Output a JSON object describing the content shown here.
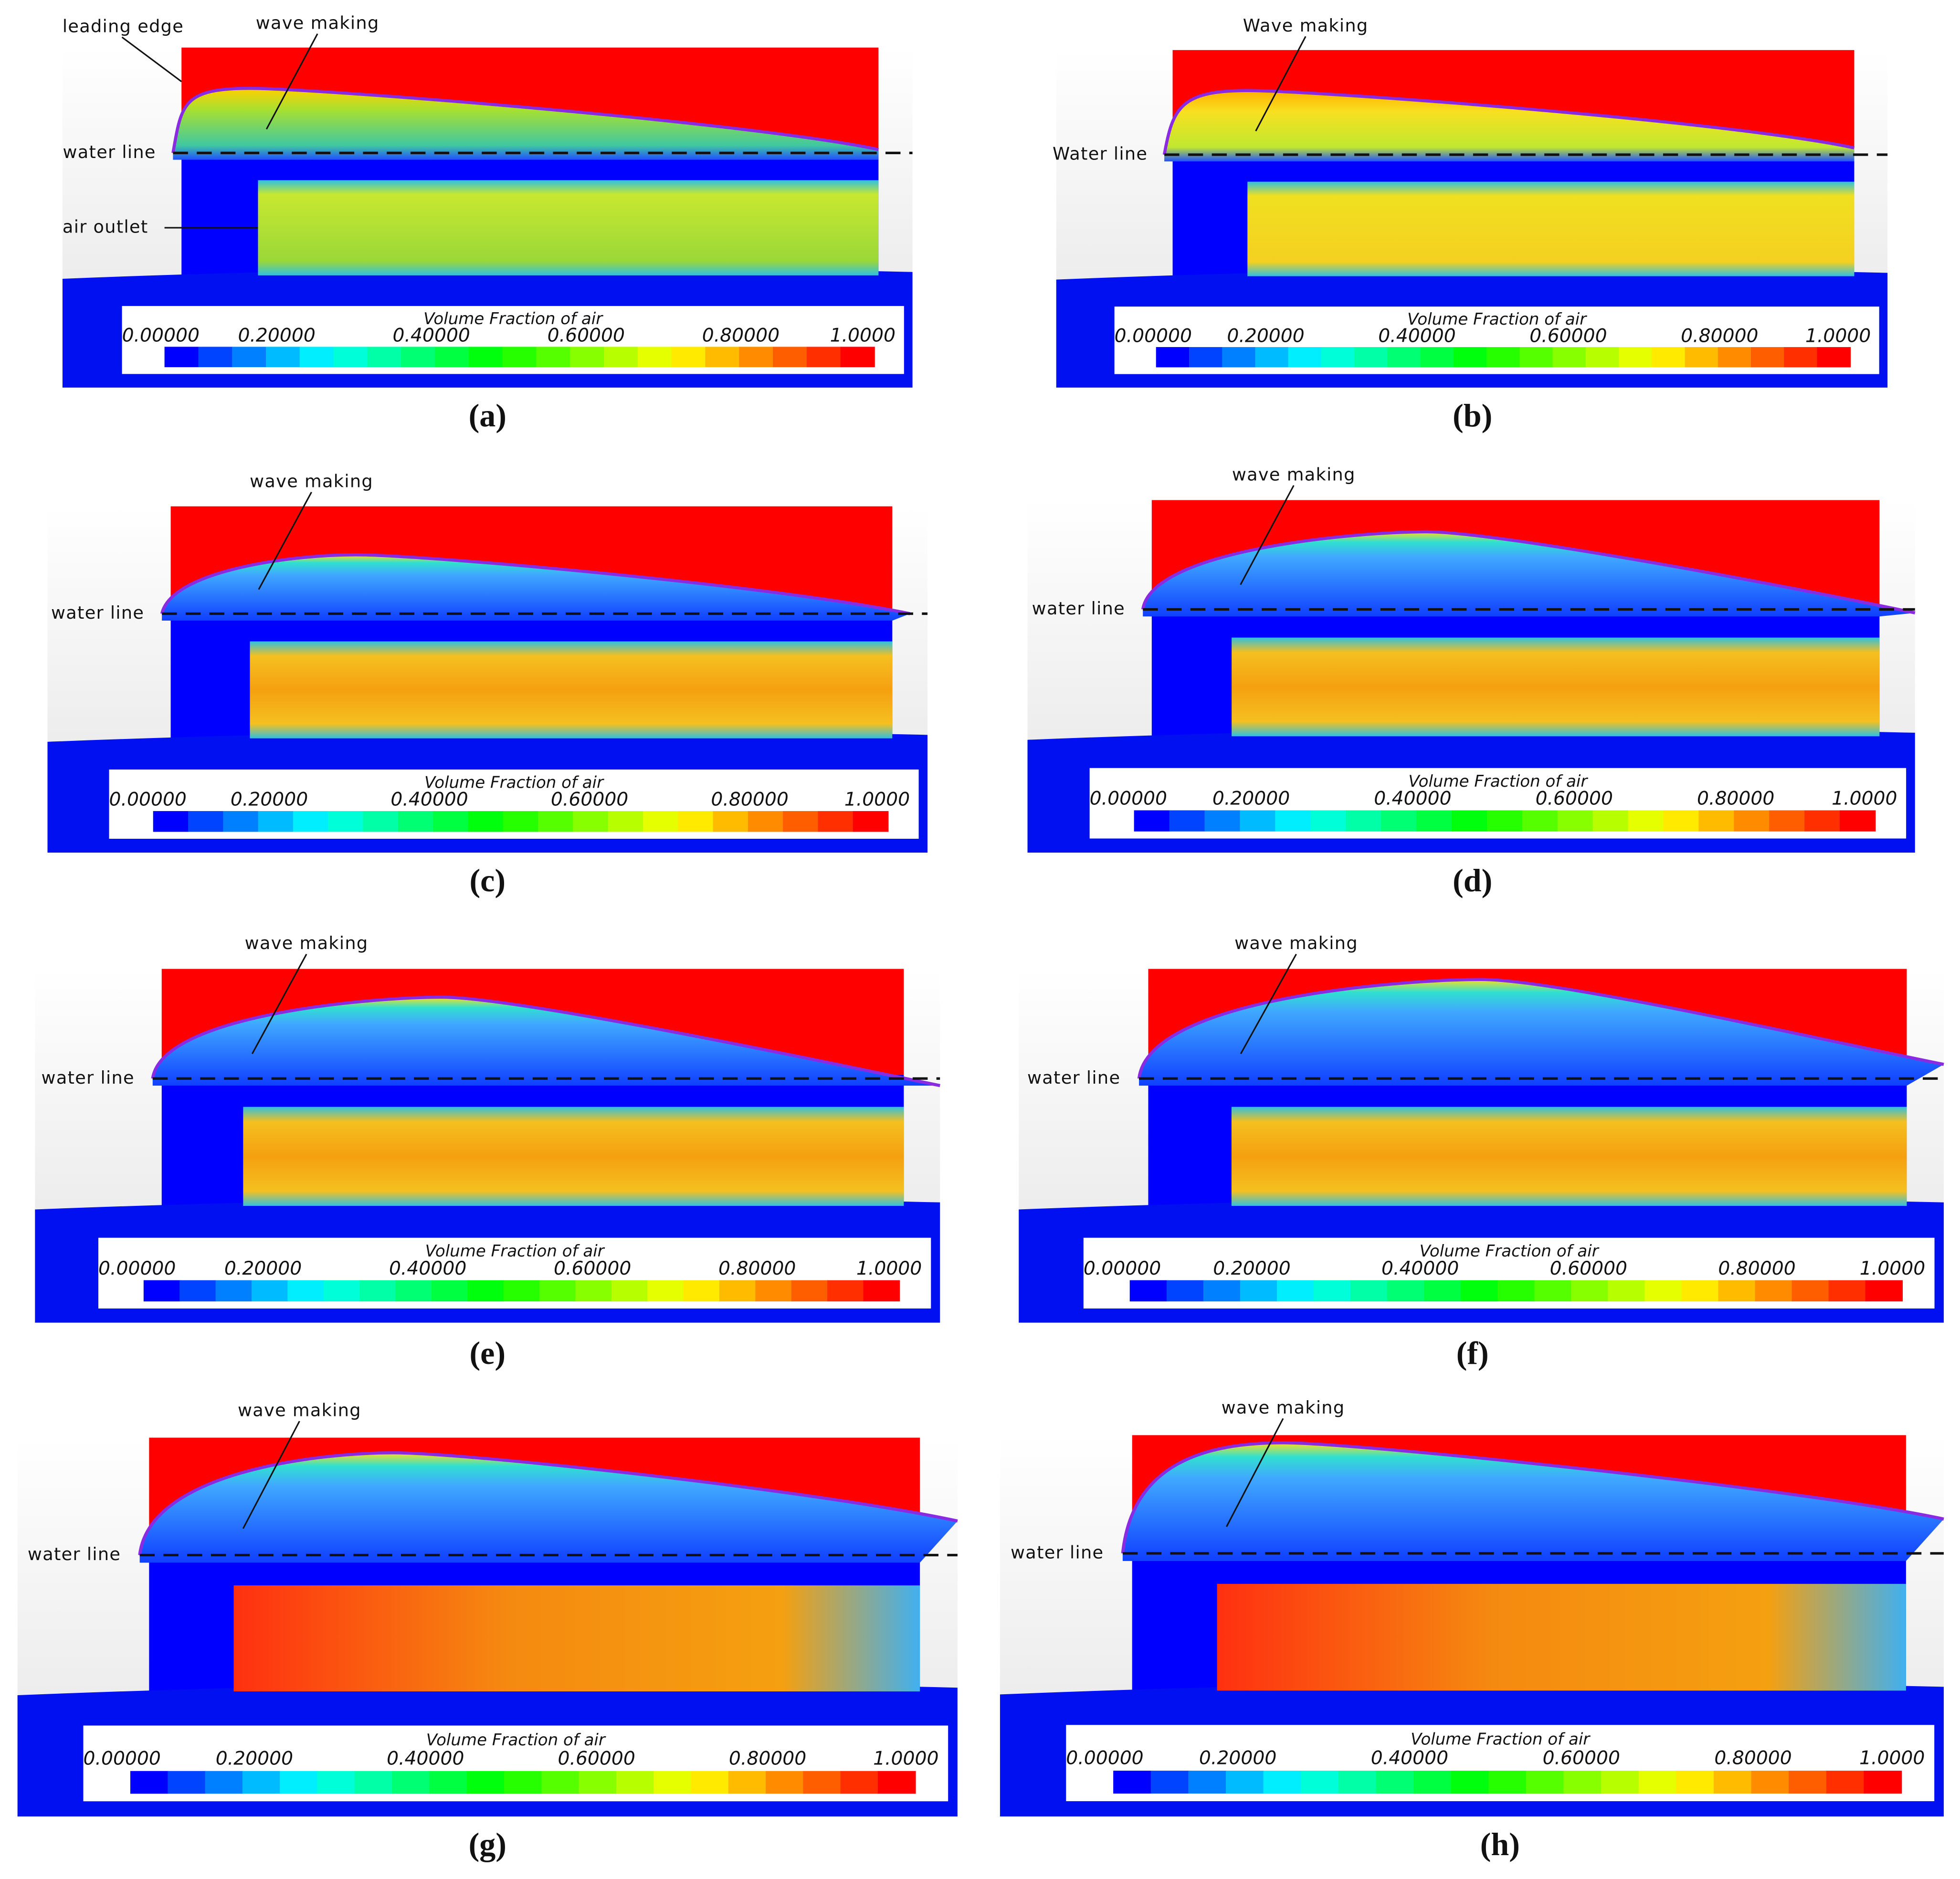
{
  "panels": [
    {
      "label": "(a)",
      "annotations": [
        "leading edge",
        "wave making",
        "water line",
        "air outlet"
      ],
      "colorbar": {
        "title": "Volume Fraction of air",
        "ticks": [
          "0.00000",
          "0.20000",
          "0.40000",
          "0.60000",
          "0.80000",
          "1.0000"
        ]
      }
    },
    {
      "label": "(b)",
      "annotations": [
        "Wave making",
        "Water line"
      ],
      "colorbar": {
        "title": "Volume Fraction of air",
        "ticks": [
          "0.00000",
          "0.20000",
          "0.40000",
          "0.60000",
          "0.80000",
          "1.0000"
        ]
      }
    },
    {
      "label": "(c)",
      "annotations": [
        "wave making",
        "water line"
      ],
      "colorbar": {
        "title": "Volume Fraction of air",
        "ticks": [
          "0.00000",
          "0.20000",
          "0.40000",
          "0.60000",
          "0.80000",
          "1.0000"
        ]
      }
    },
    {
      "label": "(d)",
      "annotations": [
        "wave making",
        "water line"
      ],
      "colorbar": {
        "title": "Volume Fraction of air",
        "ticks": [
          "0.00000",
          "0.20000",
          "0.40000",
          "0.60000",
          "0.80000",
          "1.0000"
        ]
      }
    },
    {
      "label": "(e)",
      "annotations": [
        "wave making",
        "water line"
      ],
      "colorbar": {
        "title": "Volume Fraction of air",
        "ticks": [
          "0.00000",
          "0.20000",
          "0.40000",
          "0.60000",
          "0.80000",
          "1.0000"
        ]
      }
    },
    {
      "label": "(f)",
      "annotations": [
        "wave making",
        "water line"
      ],
      "colorbar": {
        "title": "Volume Fraction of air",
        "ticks": [
          "0.00000",
          "0.20000",
          "0.40000",
          "0.60000",
          "0.80000",
          "1.0000"
        ]
      }
    },
    {
      "label": "(g)",
      "annotations": [
        "wave making",
        "water line"
      ],
      "colorbar": {
        "title": "Volume Fraction of air",
        "ticks": [
          "0.00000",
          "0.20000",
          "0.40000",
          "0.60000",
          "0.80000",
          "1.0000"
        ]
      }
    },
    {
      "label": "(h)",
      "annotations": [
        "wave making",
        "water line"
      ],
      "colorbar": {
        "title": "Volume Fraction of air",
        "ticks": [
          "0.00000",
          "0.20000",
          "0.40000",
          "0.60000",
          "0.80000",
          "1.0000"
        ]
      }
    }
  ]
}
